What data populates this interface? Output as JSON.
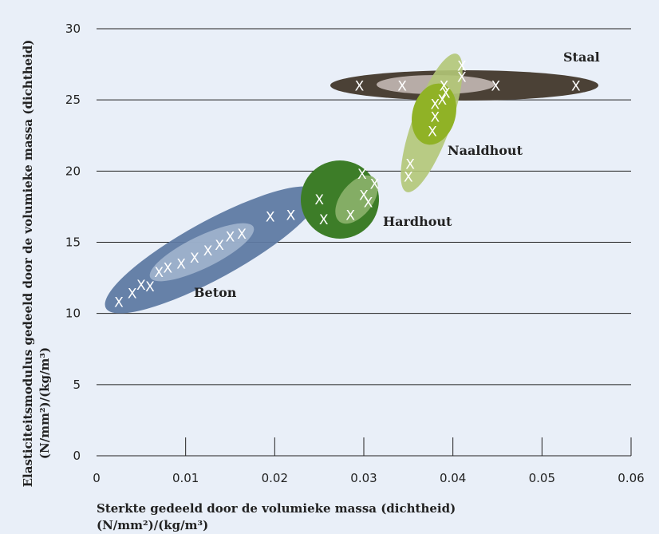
{
  "chart_data": {
    "type": "scatter",
    "xlabel_line1": "Sterkte gedeeld door de volumieke massa (dichtheid)",
    "xlabel_line2": "(N/mm²)/(kg/m³)",
    "ylabel_line1": "Elasticiteitsmodulus gedeeld door de volumieke massa (dichtheid)",
    "ylabel_line2": "(N/mm²)/(kg/m³)",
    "xlim": [
      0,
      0.06
    ],
    "ylim": [
      0,
      30
    ],
    "xticks": [
      "0",
      "0.01",
      "0.02",
      "0.03",
      "0.04",
      "0.05",
      "0.06"
    ],
    "yticks": [
      "0",
      "5",
      "10",
      "15",
      "20",
      "25",
      "30"
    ],
    "grid": "horizontal",
    "marker_symbol": "X",
    "series": [
      {
        "name": "Beton",
        "region_colors": [
          "#5f7aa3",
          "#a9bad2"
        ],
        "x": [
          0.0025,
          0.004,
          0.005,
          0.006,
          0.007,
          0.008,
          0.0095,
          0.011,
          0.0125,
          0.0138,
          0.015,
          0.0163,
          0.0195,
          0.0218,
          0.025,
          0.0255
        ],
        "y": [
          10.8,
          11.4,
          12.0,
          11.9,
          12.9,
          13.2,
          13.5,
          13.9,
          14.4,
          14.8,
          15.4,
          15.6,
          16.8,
          16.9,
          18.0,
          16.6
        ]
      },
      {
        "name": "Hardhout",
        "region_colors": [
          "#3d7d28",
          "#8cb36b"
        ],
        "x": [
          0.0285,
          0.0298,
          0.03,
          0.0305,
          0.0312
        ],
        "y": [
          16.9,
          19.8,
          18.3,
          17.8,
          19.1
        ]
      },
      {
        "name": "Naaldhout",
        "region_colors": [
          "#b3c677",
          "#90b226"
        ],
        "x": [
          0.035,
          0.0352,
          0.0377,
          0.038,
          0.038,
          0.0388,
          0.0392,
          0.041,
          0.041
        ],
        "y": [
          19.6,
          20.5,
          22.8,
          23.8,
          24.7,
          25.0,
          25.5,
          26.6,
          27.4
        ]
      },
      {
        "name": "Staal",
        "region_colors": [
          "#4b4136",
          "#bdb2ae"
        ],
        "x": [
          0.0295,
          0.0343,
          0.039,
          0.0448,
          0.0538
        ],
        "y": [
          26.0,
          26.0,
          26.0,
          26.0,
          26.0
        ]
      }
    ]
  }
}
